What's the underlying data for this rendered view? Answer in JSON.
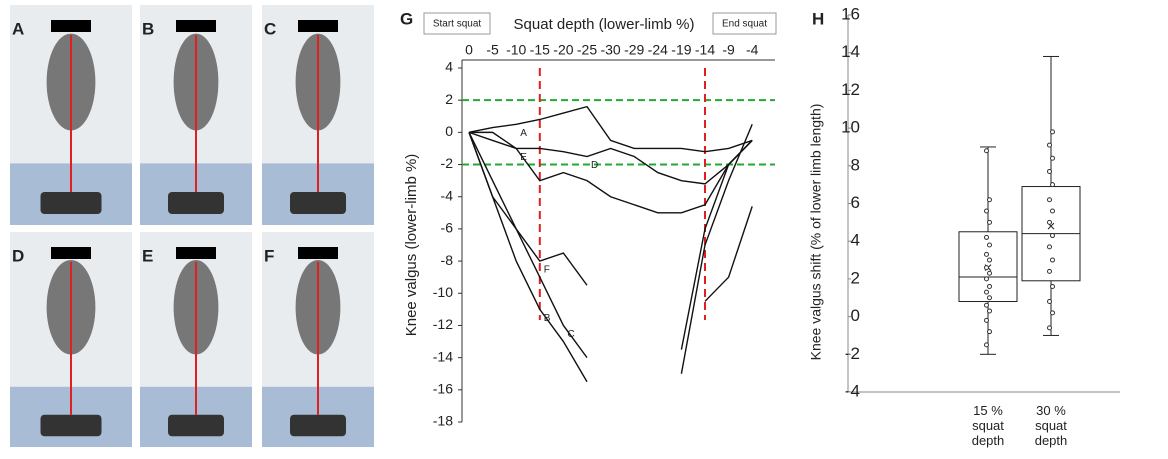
{
  "panels": [
    {
      "label": "A"
    },
    {
      "label": "B"
    },
    {
      "label": "C"
    },
    {
      "label": "D"
    },
    {
      "label": "E"
    },
    {
      "label": "F"
    }
  ],
  "chart_data": [
    {
      "type": "line",
      "panel": "G",
      "title": "Squat depth (lower-limb %)",
      "ylabel": "Knee valgus (lower-limb %)",
      "buttons": [
        "Start squat",
        "End squat"
      ],
      "categories": [
        "0",
        "-5",
        "-10",
        "-15",
        "-20",
        "-25",
        "-30",
        "-29",
        "-24",
        "-19",
        "-14",
        "-9",
        "-4"
      ],
      "ylim": [
        -18,
        4
      ],
      "yticks": [
        -18,
        -16,
        -14,
        -12,
        -10,
        -8,
        -6,
        -4,
        -2,
        0,
        2,
        4
      ],
      "hlines": [
        2,
        -2
      ],
      "hline_color": "#22aa33",
      "vlines": [
        "-15",
        "-14"
      ],
      "vline_color": "#e02020",
      "series": [
        {
          "name": "A",
          "color": "#111111",
          "values": [
            0,
            0.3,
            0.5,
            0.8,
            1.2,
            1.6,
            -0.5,
            -1,
            -1,
            -1,
            -1.2,
            -1,
            -0.5
          ]
        },
        {
          "name": "B",
          "color": "#111111",
          "values": [
            0,
            -4,
            -8,
            -11,
            -13,
            -15.5,
            null,
            null,
            null,
            null,
            -10.5,
            -9,
            -4.6
          ]
        },
        {
          "name": "C",
          "color": "#111111",
          "values": [
            0,
            -3,
            -6,
            -9,
            -12,
            -14,
            null,
            null,
            null,
            -15,
            -7,
            -3,
            0.5
          ]
        },
        {
          "name": "D",
          "color": "#111111",
          "values": [
            0,
            -0.5,
            -1,
            -1,
            -1.2,
            -1.5,
            -1,
            -1.5,
            -2.5,
            -3,
            -3.2,
            -2,
            -0.5
          ]
        },
        {
          "name": "E",
          "color": "#111111",
          "values": [
            0,
            0,
            -1,
            -3,
            -2.5,
            -3,
            -4,
            -4.5,
            -5,
            -5,
            -4.5,
            -2,
            -0.5
          ]
        },
        {
          "name": "F",
          "color": "#111111",
          "values": [
            0,
            -4,
            -6,
            -8,
            -7.5,
            -9.5,
            null,
            null,
            null,
            -13.5,
            -6,
            -2,
            -0.5
          ]
        }
      ]
    },
    {
      "type": "box",
      "panel": "H",
      "ylabel": "Knee valgus shift (% of lower limb length)",
      "categories": [
        "15 % squat depth",
        "30 % squat depth"
      ],
      "ylim": [
        -4,
        16
      ],
      "yticks": [
        -4,
        -2,
        0,
        2,
        4,
        6,
        8,
        10,
        12,
        14,
        16
      ],
      "boxes": [
        {
          "min": -2,
          "q1": 0.8,
          "median": 2.1,
          "q3": 4.5,
          "max": 9,
          "mean": 2.6,
          "points": [
            -1.5,
            -0.8,
            -0.2,
            0.3,
            0.6,
            1,
            1.3,
            1.6,
            2,
            2.3,
            2.6,
            3,
            3.3,
            3.8,
            4.2,
            5,
            5.6,
            6.2,
            8.8
          ]
        },
        {
          "min": -1,
          "q1": 1.9,
          "median": 4.4,
          "q3": 6.9,
          "max": 13.8,
          "mean": 4.8,
          "points": [
            -0.6,
            0.2,
            0.8,
            1.6,
            2.4,
            3,
            3.7,
            4.3,
            5,
            5.6,
            6.2,
            7,
            7.7,
            8.4,
            9.1,
            9.8
          ]
        }
      ]
    }
  ]
}
